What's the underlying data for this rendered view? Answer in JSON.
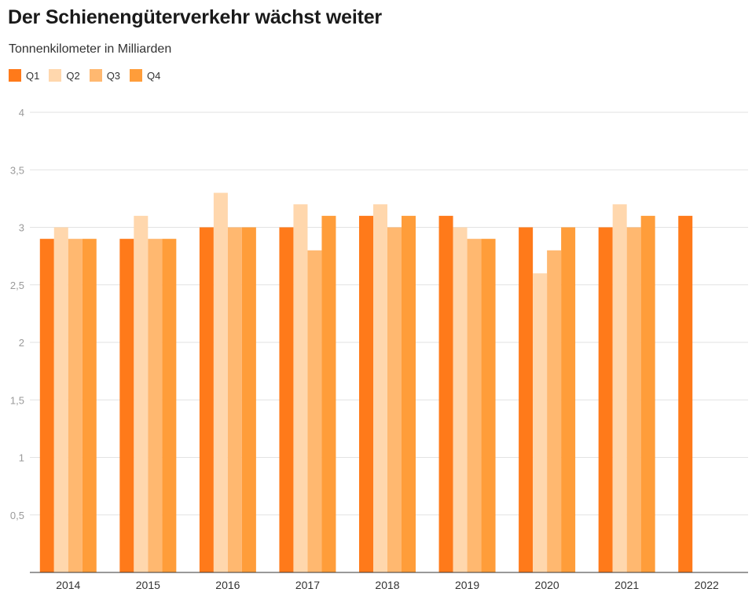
{
  "title": "Der Schienengüterverkehr wächst weiter",
  "subtitle": "Tonnenkilometer in Milliarden",
  "chart_data": {
    "type": "bar",
    "title": "Der Schienengüterverkehr wächst weiter",
    "subtitle": "Tonnenkilometer in Milliarden",
    "xlabel": "",
    "ylabel": "",
    "ylim": [
      0,
      4
    ],
    "yticks": [
      0.5,
      1,
      1.5,
      2,
      2.5,
      3,
      3.5,
      4
    ],
    "ytick_labels": [
      "0,5",
      "1",
      "1,5",
      "2",
      "2,5",
      "3",
      "3,5",
      "4"
    ],
    "grid": true,
    "legend_position": "top-left",
    "categories": [
      "2014",
      "2015",
      "2016",
      "2017",
      "2018",
      "2019",
      "2020",
      "2021",
      "2022"
    ],
    "series": [
      {
        "name": "Q1",
        "color": "#ff7a1a",
        "values": [
          2.9,
          2.9,
          3.0,
          3.0,
          3.1,
          3.1,
          3.0,
          3.0,
          3.1
        ]
      },
      {
        "name": "Q2",
        "color": "#ffd7ad",
        "values": [
          3.0,
          3.1,
          3.3,
          3.2,
          3.2,
          3.0,
          2.6,
          3.2,
          null
        ]
      },
      {
        "name": "Q3",
        "color": "#ffb870",
        "values": [
          2.9,
          2.9,
          3.0,
          2.8,
          3.0,
          2.9,
          2.8,
          3.0,
          null
        ]
      },
      {
        "name": "Q4",
        "color": "#ff9d3a",
        "values": [
          2.9,
          2.9,
          3.0,
          3.1,
          3.1,
          2.9,
          3.0,
          3.1,
          null
        ]
      }
    ]
  }
}
